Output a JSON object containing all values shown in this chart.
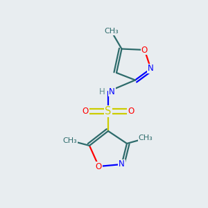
{
  "background_color": "#e8edf0",
  "fig_width": 3.0,
  "fig_height": 3.0,
  "dpi": 100,
  "colors": {
    "C": "#2d6b6b",
    "N": "#0000ff",
    "O": "#ff0000",
    "S": "#cccc00",
    "H": "#5f8f8f"
  },
  "lw": 1.6,
  "fs": 8.5,
  "xlim": [
    0,
    10
  ],
  "ylim": [
    0,
    10
  ]
}
